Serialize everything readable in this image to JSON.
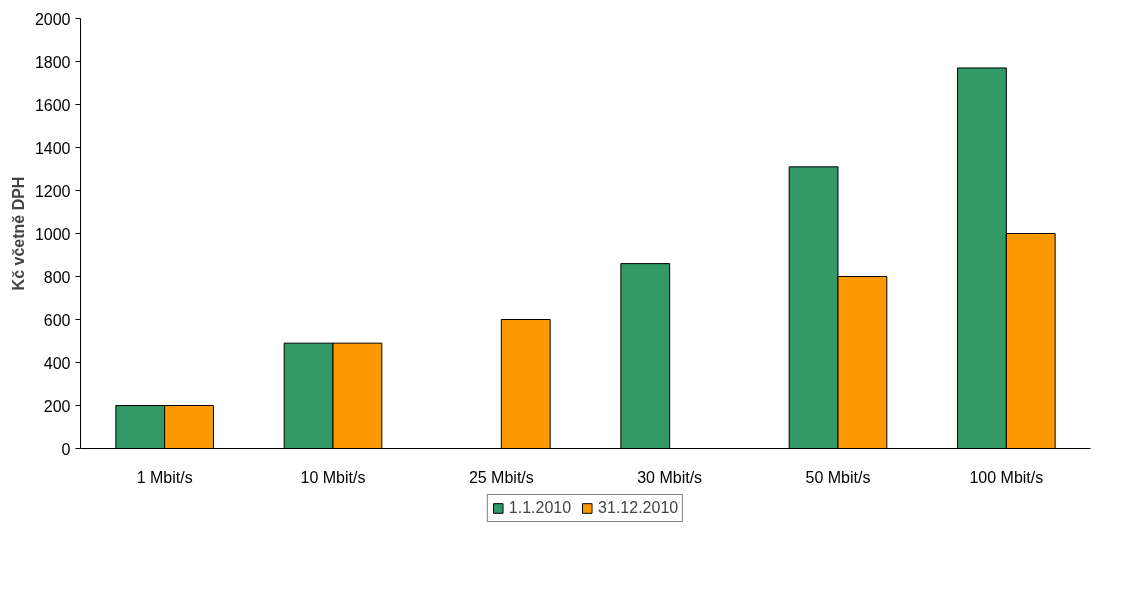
{
  "chart_data": {
    "type": "bar",
    "ylabel": "Kč včetně DPH",
    "categories": [
      "1 Mbit/s",
      "10 Mbit/s",
      "25 Mbit/s",
      "30 Mbit/s",
      "50 Mbit/s",
      "100 Mbit/s"
    ],
    "series": [
      {
        "name": "1.1.2010",
        "color": "#339966",
        "values": [
          200,
          490,
          null,
          860,
          1310,
          1770
        ]
      },
      {
        "name": "31.12.2010",
        "color": "#ff9900",
        "values": [
          200,
          490,
          600,
          null,
          800,
          1000
        ]
      }
    ],
    "ylim": [
      0,
      2000
    ],
    "yticks": [
      0,
      200,
      400,
      600,
      800,
      1000,
      1200,
      1400,
      1600,
      1800,
      2000
    ],
    "grid": false,
    "legend": "bottom"
  }
}
